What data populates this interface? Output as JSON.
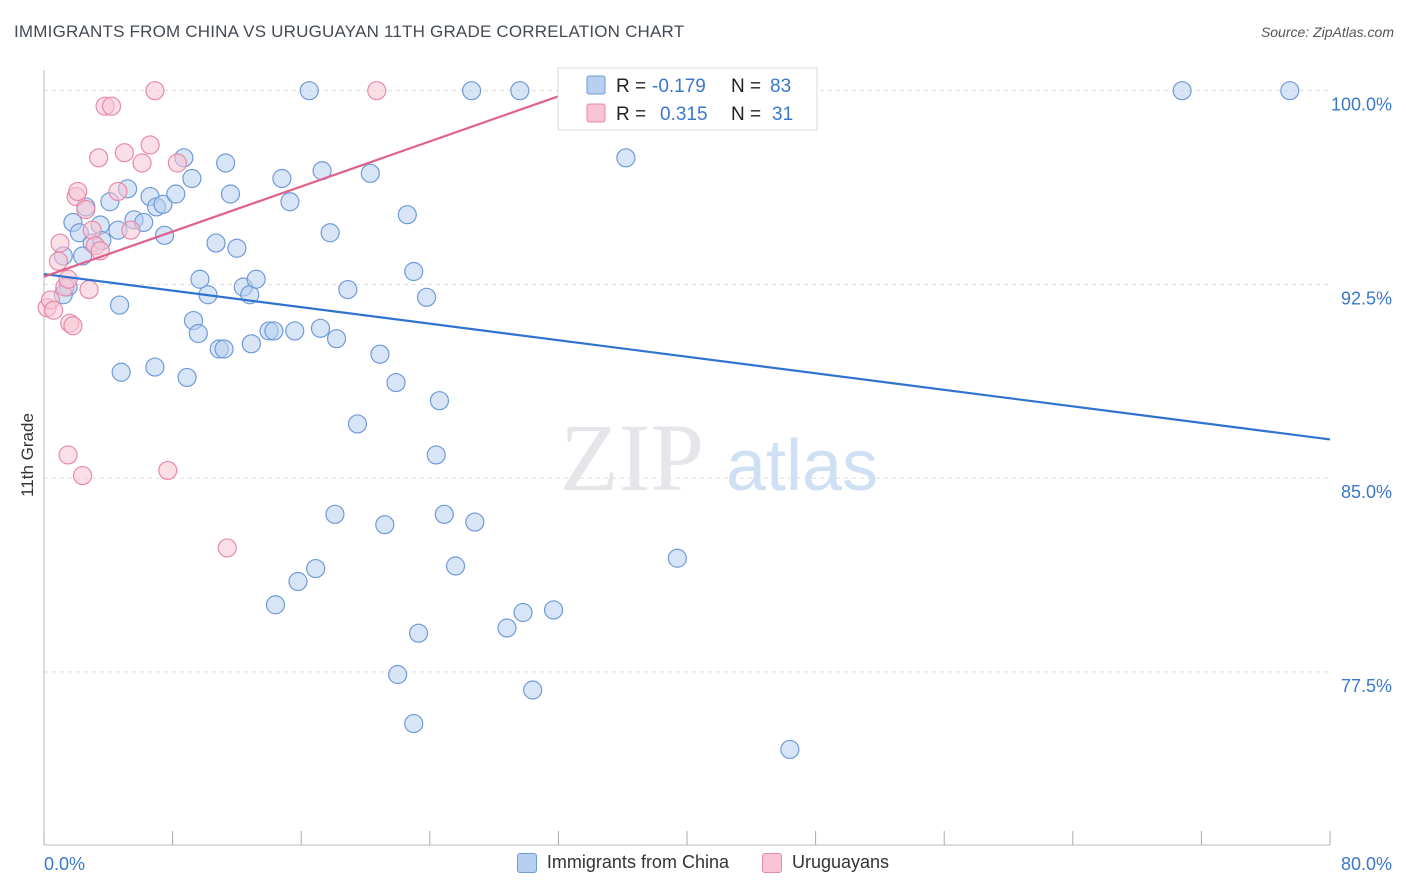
{
  "header": {
    "title": "IMMIGRANTS FROM CHINA VS URUGUAYAN 11TH GRADE CORRELATION CHART",
    "source": "Source: ZipAtlas.com"
  },
  "watermark": {
    "zip": "ZIP",
    "atlas": "atlas"
  },
  "legend_box": {
    "rows": [
      {
        "r_label": "R =",
        "r_value": "-0.179",
        "n_label": "N =",
        "n_value": "83"
      },
      {
        "r_label": "R =",
        "r_value": "0.315",
        "n_label": "N =",
        "n_value": "31"
      }
    ]
  },
  "bottom_legend": {
    "items": [
      {
        "label": "Immigrants from China"
      },
      {
        "label": "Uruguayans"
      }
    ]
  },
  "colors": {
    "china_fill": "#b8d0f0",
    "china_stroke": "#6f9ad8",
    "china_line": "#2f72d0",
    "uru_fill": "#f8c4d4",
    "uru_stroke": "#e889a8",
    "uru_line": "#e0628c",
    "axis_text": "#3a78c9",
    "grid": "#dddddd"
  },
  "chart_data": {
    "type": "scatter",
    "title": "IMMIGRANTS FROM CHINA VS URUGUAYAN 11TH GRADE CORRELATION CHART",
    "xlabel": "",
    "ylabel": "11th Grade",
    "xlim": [
      0,
      80
    ],
    "ylim": [
      70.8,
      100.8
    ],
    "x_tick_labels": [
      "0.0%",
      "80.0%"
    ],
    "y_ticks": [
      77.5,
      85.0,
      92.5,
      100.0
    ],
    "y_tick_labels": [
      "77.5%",
      "85.0%",
      "92.5%",
      "100.0%"
    ],
    "grid": true,
    "legend_position": "top-center",
    "series": [
      {
        "name": "Immigrants from China",
        "r": -0.179,
        "n": 83,
        "trend": {
          "x": [
            0,
            80
          ],
          "y": [
            92.9,
            86.5
          ]
        },
        "points": [
          [
            1.2,
            93.6
          ],
          [
            1.5,
            92.4
          ],
          [
            1.2,
            92.1
          ],
          [
            1.8,
            94.9
          ],
          [
            2.2,
            94.5
          ],
          [
            2.6,
            95.5
          ],
          [
            3.0,
            94.1
          ],
          [
            3.5,
            94.8
          ],
          [
            4.1,
            95.7
          ],
          [
            4.6,
            94.6
          ],
          [
            5.2,
            96.2
          ],
          [
            5.6,
            95.0
          ],
          [
            6.2,
            94.9
          ],
          [
            6.6,
            95.9
          ],
          [
            7.0,
            95.5
          ],
          [
            7.4,
            95.6
          ],
          [
            7.5,
            94.4
          ],
          [
            8.2,
            96.0
          ],
          [
            8.7,
            97.4
          ],
          [
            9.2,
            96.6
          ],
          [
            9.7,
            92.7
          ],
          [
            10.2,
            92.1
          ],
          [
            10.7,
            94.1
          ],
          [
            11.3,
            97.2
          ],
          [
            11.6,
            96.0
          ],
          [
            12.0,
            93.9
          ],
          [
            12.4,
            92.4
          ],
          [
            12.8,
            92.1
          ],
          [
            13.2,
            92.7
          ],
          [
            14.0,
            90.7
          ],
          [
            14.3,
            90.7
          ],
          [
            14.8,
            96.6
          ],
          [
            15.3,
            95.7
          ],
          [
            16.5,
            100.0
          ],
          [
            17.3,
            96.9
          ],
          [
            17.8,
            94.5
          ],
          [
            18.9,
            92.3
          ],
          [
            19.5,
            87.1
          ],
          [
            20.3,
            96.8
          ],
          [
            21.9,
            88.7
          ],
          [
            22.6,
            95.2
          ],
          [
            23.0,
            93.0
          ],
          [
            23.8,
            92.0
          ],
          [
            24.6,
            88.0
          ],
          [
            24.4,
            85.9
          ],
          [
            29.6,
            100.0
          ],
          [
            36.2,
            97.4
          ],
          [
            37.5,
            100.0
          ],
          [
            2.4,
            93.6
          ],
          [
            4.7,
            91.7
          ],
          [
            4.8,
            89.1
          ],
          [
            6.9,
            89.3
          ],
          [
            9.3,
            91.1
          ],
          [
            9.6,
            90.6
          ],
          [
            10.9,
            90.0
          ],
          [
            11.2,
            90.0
          ],
          [
            12.9,
            90.2
          ],
          [
            15.6,
            90.7
          ],
          [
            17.2,
            90.8
          ],
          [
            18.2,
            90.4
          ],
          [
            20.9,
            89.8
          ],
          [
            8.9,
            88.9
          ],
          [
            21.2,
            83.2
          ],
          [
            18.1,
            83.6
          ],
          [
            24.9,
            83.6
          ],
          [
            26.8,
            83.3
          ],
          [
            16.9,
            81.5
          ],
          [
            14.4,
            80.1
          ],
          [
            15.8,
            81.0
          ],
          [
            23.3,
            79.0
          ],
          [
            28.8,
            79.2
          ],
          [
            29.8,
            79.8
          ],
          [
            25.6,
            81.6
          ],
          [
            22.0,
            77.4
          ],
          [
            23.0,
            75.5
          ],
          [
            30.4,
            76.8
          ],
          [
            31.7,
            79.9
          ],
          [
            39.4,
            81.9
          ],
          [
            46.4,
            74.5
          ],
          [
            70.8,
            100.0
          ],
          [
            77.5,
            100.0
          ],
          [
            26.6,
            100.0
          ],
          [
            3.6,
            94.2
          ]
        ]
      },
      {
        "name": "Uruguayans",
        "r": 0.315,
        "n": 31,
        "trend": {
          "x": [
            0,
            33.0
          ],
          "y": [
            92.8,
            100.0
          ]
        },
        "points": [
          [
            0.2,
            91.6
          ],
          [
            0.4,
            91.9
          ],
          [
            0.9,
            93.4
          ],
          [
            1.0,
            94.1
          ],
          [
            1.3,
            92.4
          ],
          [
            1.5,
            92.7
          ],
          [
            1.6,
            91.0
          ],
          [
            1.8,
            90.9
          ],
          [
            2.0,
            95.9
          ],
          [
            2.1,
            96.1
          ],
          [
            2.6,
            95.4
          ],
          [
            3.0,
            94.6
          ],
          [
            3.2,
            94.0
          ],
          [
            3.4,
            97.4
          ],
          [
            3.8,
            99.4
          ],
          [
            4.2,
            99.4
          ],
          [
            4.6,
            96.1
          ],
          [
            5.0,
            97.6
          ],
          [
            5.4,
            94.6
          ],
          [
            6.1,
            97.2
          ],
          [
            6.6,
            97.9
          ],
          [
            6.9,
            100.0
          ],
          [
            8.3,
            97.2
          ],
          [
            20.7,
            100.0
          ],
          [
            2.8,
            92.3
          ],
          [
            1.5,
            85.9
          ],
          [
            2.4,
            85.1
          ],
          [
            7.7,
            85.3
          ],
          [
            11.4,
            82.3
          ],
          [
            0.6,
            91.5
          ],
          [
            3.5,
            93.8
          ]
        ]
      }
    ]
  }
}
